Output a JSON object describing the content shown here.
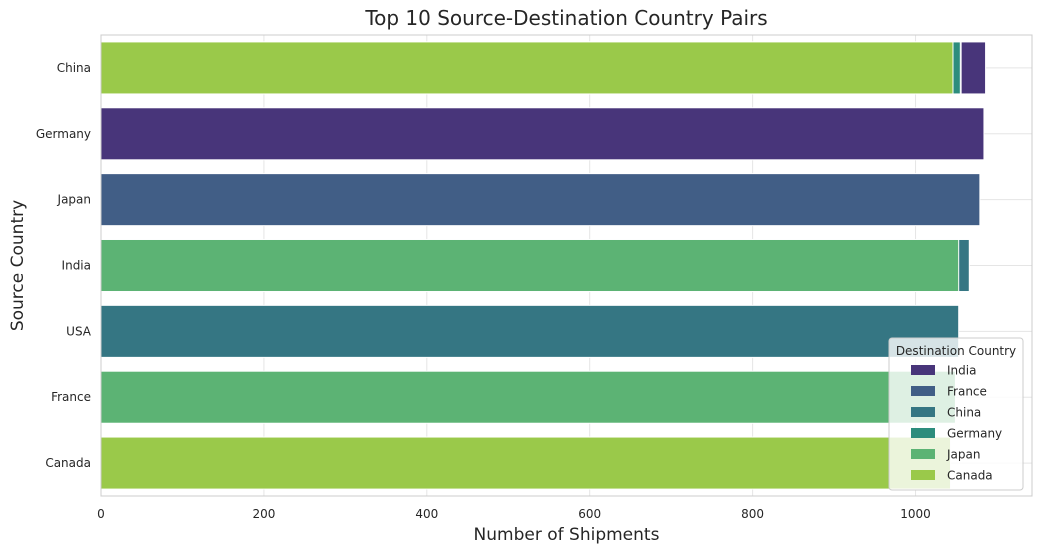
{
  "chart_data": {
    "type": "bar",
    "orientation": "horizontal",
    "title": "Top 10 Source-Destination Country Pairs",
    "xlabel": "Number of Shipments",
    "ylabel": "Source Country",
    "xlim": [
      0,
      1143
    ],
    "xticks": [
      "0",
      "200",
      "400",
      "600",
      "800",
      "1000"
    ],
    "xtick_values": [
      0,
      200,
      400,
      600,
      800,
      1000
    ],
    "grid": true,
    "categories": [
      "China",
      "Germany",
      "Japan",
      "India",
      "USA",
      "France",
      "Canada"
    ],
    "series": [
      {
        "name": "India",
        "color": "#48357a",
        "values": {
          "China": 1086,
          "Germany": 1084
        }
      },
      {
        "name": "France",
        "color": "#415e86",
        "values": {
          "Japan": 1079
        }
      },
      {
        "name": "China",
        "color": "#357683",
        "values": {
          "China": 1056,
          "India": 1066,
          "USA": 1053
        }
      },
      {
        "name": "Germany",
        "color": "#2d8d7d",
        "values": {
          "China": 1055
        }
      },
      {
        "name": "Japan",
        "color": "#5cb374",
        "values": {
          "India": 1053,
          "France": 1049
        }
      },
      {
        "name": "Canada",
        "color": "#9ac94a",
        "values": {
          "China": 1046,
          "Canada": 1043
        }
      }
    ],
    "legend": {
      "title": "Destination Country",
      "placement": "lower-right",
      "entries": [
        "India",
        "France",
        "China",
        "Germany",
        "Japan",
        "Canada"
      ]
    }
  }
}
